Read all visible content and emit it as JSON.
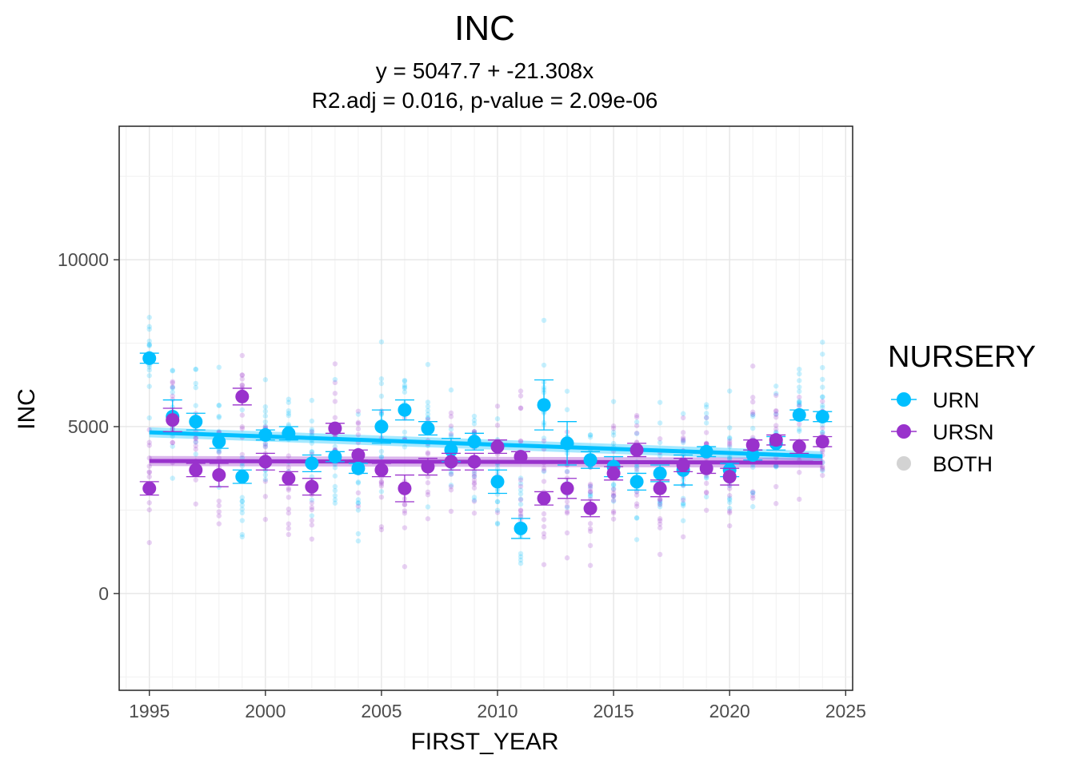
{
  "chart_data": {
    "type": "scatter",
    "title": "INC",
    "subtitle_lines": [
      "y = 5047.7 + -21.308x",
      "R2.adj = 0.016, p-value = 2.09e-06"
    ],
    "xlabel": "FIRST_YEAR",
    "ylabel": "INC",
    "xlim": [
      1993.7,
      2025.3
    ],
    "ylim": [
      -2900,
      14000
    ],
    "x_ticks": [
      1995,
      2000,
      2005,
      2010,
      2015,
      2020,
      2025
    ],
    "y_ticks": [
      0,
      5000,
      10000
    ],
    "grid": true,
    "legend": {
      "title": "NURSERY",
      "position": "right",
      "entries": [
        {
          "label": "URN",
          "color": "#00BFFF"
        },
        {
          "label": "URSN",
          "color": "#9932CC"
        },
        {
          "label": "BOTH",
          "color": "#D3D3D3"
        }
      ]
    },
    "series": [
      {
        "name": "URN",
        "color": "#00BFFF",
        "mean_points": [
          {
            "x": 1995,
            "y": 7050,
            "se": 150
          },
          {
            "x": 1996,
            "y": 5300,
            "se": 500
          },
          {
            "x": 1997,
            "y": 5150,
            "se": 250
          },
          {
            "x": 1998,
            "y": 4550,
            "se": 200
          },
          {
            "x": 1999,
            "y": 3500,
            "se": 200
          },
          {
            "x": 2000,
            "y": 4750,
            "se": 150
          },
          {
            "x": 2001,
            "y": 4800,
            "se": 200
          },
          {
            "x": 2002,
            "y": 3900,
            "se": 250
          },
          {
            "x": 2003,
            "y": 4100,
            "se": 150
          },
          {
            "x": 2004,
            "y": 3750,
            "se": 150
          },
          {
            "x": 2005,
            "y": 5000,
            "se": 500
          },
          {
            "x": 2006,
            "y": 5500,
            "se": 300
          },
          {
            "x": 2007,
            "y": 4950,
            "se": 200
          },
          {
            "x": 2008,
            "y": 4300,
            "se": 350
          },
          {
            "x": 2009,
            "y": 4550,
            "se": 250
          },
          {
            "x": 2010,
            "y": 3350,
            "se": 350
          },
          {
            "x": 2011,
            "y": 1950,
            "se": 300
          },
          {
            "x": 2012,
            "y": 5650,
            "se": 750
          },
          {
            "x": 2013,
            "y": 4500,
            "se": 650
          },
          {
            "x": 2014,
            "y": 4000,
            "se": 250
          },
          {
            "x": 2015,
            "y": 3800,
            "se": 300
          },
          {
            "x": 2016,
            "y": 3350,
            "se": 250
          },
          {
            "x": 2017,
            "y": 3600,
            "se": 250
          },
          {
            "x": 2018,
            "y": 3700,
            "se": 450
          },
          {
            "x": 2019,
            "y": 4250,
            "se": 150
          },
          {
            "x": 2020,
            "y": 3700,
            "se": 200
          },
          {
            "x": 2021,
            "y": 4150,
            "se": 150
          },
          {
            "x": 2022,
            "y": 4500,
            "se": 200
          },
          {
            "x": 2023,
            "y": 5350,
            "se": 150
          },
          {
            "x": 2024,
            "y": 5300,
            "se": 150
          }
        ],
        "trend": {
          "x": [
            1995,
            2024
          ],
          "y": [
            4830,
            4110
          ],
          "band": 150
        }
      },
      {
        "name": "URSN",
        "color": "#9932CC",
        "mean_points": [
          {
            "x": 1995,
            "y": 3150,
            "se": 200
          },
          {
            "x": 1996,
            "y": 5200,
            "se": 350
          },
          {
            "x": 1997,
            "y": 3700,
            "se": 200
          },
          {
            "x": 1998,
            "y": 3550,
            "se": 350
          },
          {
            "x": 1999,
            "y": 5900,
            "se": 250
          },
          {
            "x": 2000,
            "y": 3950,
            "se": 250
          },
          {
            "x": 2001,
            "y": 3450,
            "se": 200
          },
          {
            "x": 2002,
            "y": 3200,
            "se": 250
          },
          {
            "x": 2003,
            "y": 4950,
            "se": 150
          },
          {
            "x": 2004,
            "y": 4150,
            "se": 150
          },
          {
            "x": 2005,
            "y": 3700,
            "se": 200
          },
          {
            "x": 2006,
            "y": 3150,
            "se": 400
          },
          {
            "x": 2007,
            "y": 3800,
            "se": 250
          },
          {
            "x": 2008,
            "y": 3950,
            "se": 250
          },
          {
            "x": 2009,
            "y": 3950,
            "se": 250
          },
          {
            "x": 2010,
            "y": 4400,
            "se": 200
          },
          {
            "x": 2011,
            "y": 4100,
            "se": 150
          },
          {
            "x": 2012,
            "y": 2850,
            "se": 200
          },
          {
            "x": 2013,
            "y": 3150,
            "se": 300
          },
          {
            "x": 2014,
            "y": 2550,
            "se": 250
          },
          {
            "x": 2015,
            "y": 3600,
            "se": 200
          },
          {
            "x": 2016,
            "y": 4300,
            "se": 200
          },
          {
            "x": 2017,
            "y": 3150,
            "se": 250
          },
          {
            "x": 2018,
            "y": 3850,
            "se": 200
          },
          {
            "x": 2019,
            "y": 3750,
            "se": 150
          },
          {
            "x": 2020,
            "y": 3500,
            "se": 250
          },
          {
            "x": 2021,
            "y": 4450,
            "se": 150
          },
          {
            "x": 2022,
            "y": 4600,
            "se": 150
          },
          {
            "x": 2023,
            "y": 4400,
            "se": 200
          },
          {
            "x": 2024,
            "y": 4550,
            "se": 150
          }
        ],
        "trend": {
          "x": [
            1995,
            2024
          ],
          "y": [
            3970,
            3920
          ],
          "band": 150
        }
      }
    ]
  }
}
